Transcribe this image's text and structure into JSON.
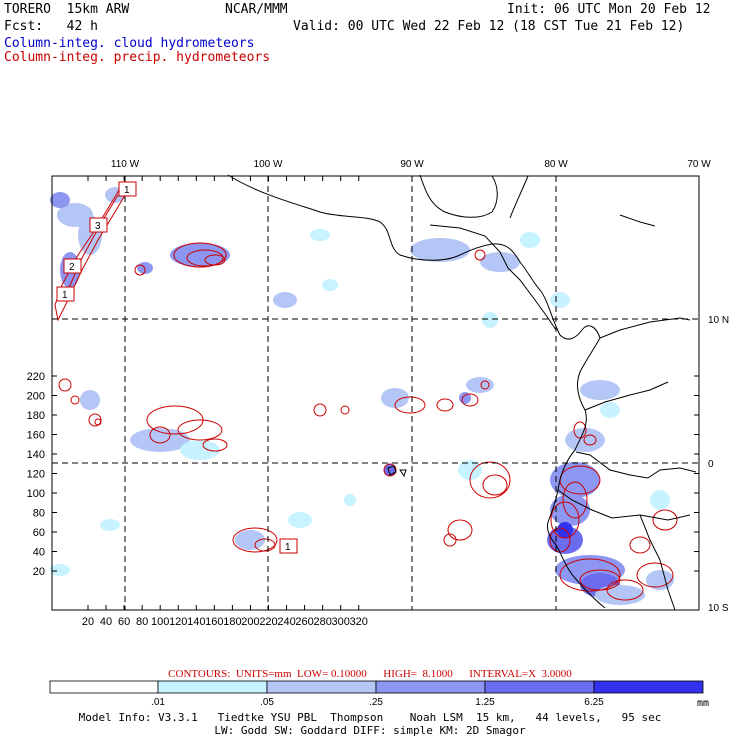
{
  "header": {
    "model": "TORERO  15km ARW",
    "center": "NCAR/MMM",
    "init": "Init: 06 UTC Mon 20 Feb 12",
    "fcst": "Fcst:   42 h",
    "valid": "Valid: 00 UTC Wed 22 Feb 12 (18 CST Tue 21 Feb 12)",
    "field1": "Column-integ. cloud hydrometeors",
    "field2": "Column-integ. precip. hydrometeors"
  },
  "colors": {
    "cloud": "#0000cc",
    "precip": "#cc0000",
    "fill_levels": [
      "#c6f3ff",
      "#b4c6f5",
      "#8d96f0",
      "#6c6cef",
      "#3232ee"
    ]
  },
  "map": {
    "lon_labels": [
      "110 W",
      "100 W",
      "90 W",
      "80 W",
      "70 W"
    ],
    "lat_labels": [
      "10 N",
      "0",
      "10 S"
    ],
    "x_ticks": [
      "20",
      "40",
      "60",
      "80",
      "100",
      "120",
      "140",
      "160",
      "180",
      "200",
      "220",
      "240",
      "260",
      "280",
      "300",
      "320"
    ],
    "y_ticks": [
      "20",
      "40",
      "60",
      "80",
      "100",
      "120",
      "140",
      "160",
      "180",
      "200",
      "220"
    ],
    "box_labels": [
      "1",
      "3",
      "2",
      "1",
      "1"
    ]
  },
  "contours": {
    "text": "CONTOURS:  UNITS=mm  LOW= 0.10000      HIGH=  8.1000      INTERVAL=X  3.0000"
  },
  "legend": {
    "labels": [
      ".01",
      ".05",
      ".25",
      "1.25",
      "6.25"
    ],
    "units": "mm"
  },
  "footer": {
    "line1": "Model Info: V3.3.1   Tiedtke YSU PBL  Thompson    Noah LSM  15 km,   44 levels,   95 sec",
    "line2": "LW: Godd SW: Goddard DIFF: simple KM: 2D Smagor"
  }
}
